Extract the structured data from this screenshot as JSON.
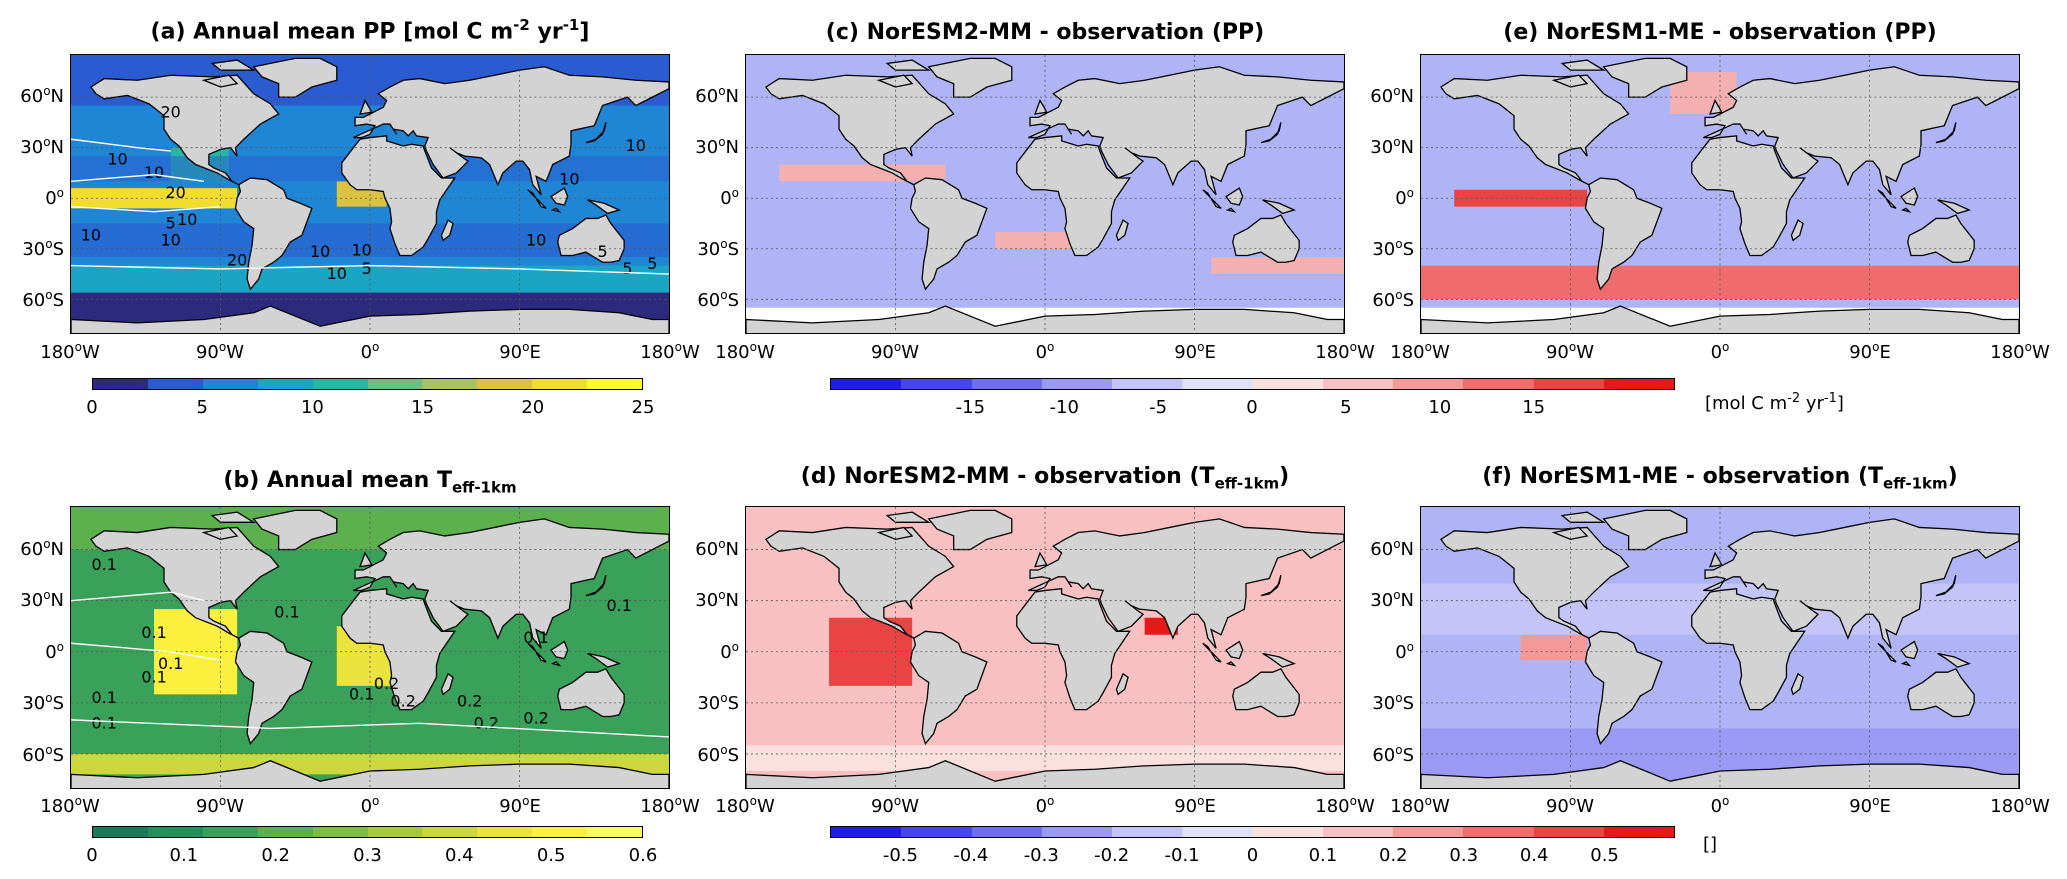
{
  "chart_data": [
    {
      "id": "a",
      "type": "heatmap",
      "title_pre": "(a) Annual mean PP [mol C m",
      "title_sup1": "-2",
      "title_mid": " yr",
      "title_sup2": "-1",
      "title_post": "]",
      "contour_labels": [
        "20",
        "10",
        "10",
        "20",
        "5",
        "10",
        "10",
        "10",
        "10",
        "10",
        "10",
        "5",
        "5",
        "5",
        "20",
        "10",
        "10",
        "10",
        "5"
      ],
      "colorbar": {
        "ticks": [
          "0",
          "5",
          "10",
          "15",
          "20",
          "25"
        ],
        "colors": [
          "#2c2a7c",
          "#2a5bd0",
          "#1f86d6",
          "#1aa5c4",
          "#25b6a6",
          "#6bbf80",
          "#a8c262",
          "#dcc242",
          "#f2dc2e",
          "#fbfb2e"
        ]
      }
    },
    {
      "id": "b",
      "type": "heatmap",
      "title_pre": "(b) Annual mean T",
      "title_sub": "eff-1km",
      "title_post": "",
      "contour_labels": [
        "0.1",
        "0.1",
        "0.1",
        "0.1",
        "0.1",
        "0.1",
        "0.2",
        "0.1",
        "0.2",
        "0.2",
        "0.2",
        "0.2",
        "0.1",
        "0.1",
        "0.1"
      ],
      "colorbar": {
        "ticks": [
          "0",
          "0.1",
          "0.2",
          "0.3",
          "0.4",
          "0.5",
          "0.6"
        ],
        "colors": [
          "#1a7a5a",
          "#23905a",
          "#3aa15a",
          "#5cb04e",
          "#7fbd45",
          "#a6c93e",
          "#cbd73c",
          "#ebe33e",
          "#fbf03e",
          "#fcfc60"
        ]
      }
    },
    {
      "id": "c",
      "type": "heatmap",
      "title_pre": "(c) NorESM2-MM - observation (PP)",
      "title_post": ""
    },
    {
      "id": "d",
      "type": "heatmap",
      "title_pre": "(d) NorESM2-MM - observation (T",
      "title_sub": "eff-1km",
      "title_post": ")"
    },
    {
      "id": "e",
      "type": "heatmap",
      "title_pre": "(e) NorESM1-ME - observation (PP)",
      "title_post": ""
    },
    {
      "id": "f",
      "type": "heatmap",
      "title_pre": "(f) NorESM1-ME - observation (T",
      "title_sub": "eff-1km",
      "title_post": ")"
    }
  ],
  "diff_colorbars": {
    "pp": {
      "ticks": [
        "-15",
        "-10",
        "-5",
        "0",
        "5",
        "10",
        "15"
      ],
      "unit_pre": "[mol C m",
      "unit_sup1": "-2",
      "unit_mid": " yr",
      "unit_sup2": "-1",
      "unit_post": "]"
    },
    "t": {
      "ticks": [
        "-0.5",
        "-0.4",
        "-0.3",
        "-0.2",
        "-0.1",
        "0",
        "0.1",
        "0.2",
        "0.3",
        "0.4",
        "0.5"
      ],
      "unit": "[]"
    },
    "colors": [
      "#1e1ee6",
      "#4646ec",
      "#6f6ff0",
      "#9a9af4",
      "#c4c4f8",
      "#e0e0fb",
      "#fbe0e0",
      "#f8c0c0",
      "#f49898",
      "#ef6c6c",
      "#e84444",
      "#e61818"
    ]
  },
  "axes": {
    "lat_top": [
      "60",
      "30",
      "0",
      "30",
      "60"
    ],
    "lat_top_hemi": [
      "N",
      "N",
      "",
      "S",
      "S"
    ],
    "lat_bot": [
      "60",
      "30",
      "0",
      "30",
      "60"
    ],
    "lat_bot_hemi": [
      "N",
      "N",
      "",
      "S",
      "S"
    ],
    "lon": [
      "180",
      "90",
      "0",
      "90",
      "180"
    ],
    "lon_hemi": [
      "W",
      "W",
      "",
      "E",
      "W"
    ]
  },
  "colors": {
    "land": "#d3d3d3",
    "ocean_pp": "#1f86d6",
    "ocean_t": "#3aa15a",
    "diff_blue": "#aeb4f6",
    "diff_red": "#f4b0b0"
  }
}
